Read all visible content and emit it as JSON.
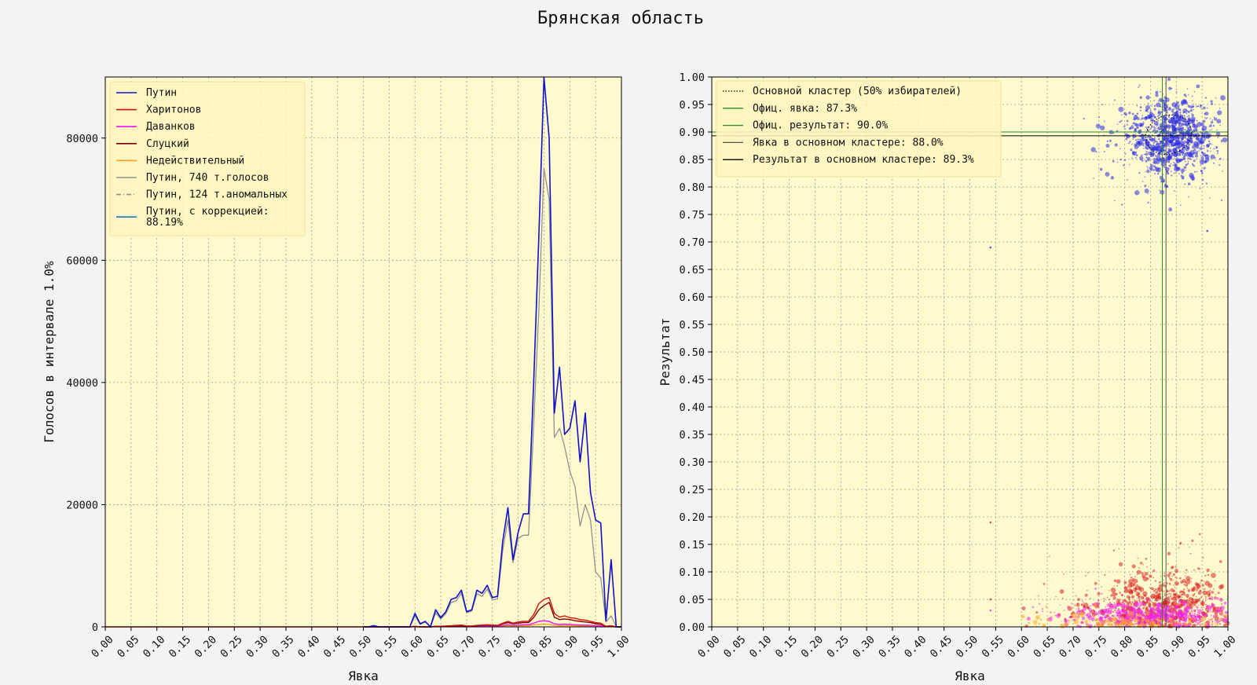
{
  "title": "Брянская область",
  "chart_data": [
    {
      "type": "line",
      "xlabel": "Явка",
      "ylabel": "Голосов в интервале 1.0%",
      "xlim": [
        0,
        1
      ],
      "ylim": [
        0,
        90000
      ],
      "xticks": [
        "0.00",
        "0.05",
        "0.10",
        "0.15",
        "0.20",
        "0.25",
        "0.30",
        "0.35",
        "0.40",
        "0.45",
        "0.50",
        "0.55",
        "0.60",
        "0.65",
        "0.70",
        "0.75",
        "0.80",
        "0.85",
        "0.90",
        "0.95",
        "1.00"
      ],
      "yticks": [
        "0",
        "20000",
        "40000",
        "60000",
        "80000"
      ],
      "ytick_values": [
        0,
        20000,
        40000,
        60000,
        80000
      ],
      "grid": true,
      "legend_position": "upper-left",
      "background": "#fffacd",
      "legend": [
        {
          "label": "Путин",
          "color": "#1010d0",
          "style": "solid"
        },
        {
          "label": "Харитонов",
          "color": "#d01010",
          "style": "solid"
        },
        {
          "label": "Даванков",
          "color": "#ee10ee",
          "style": "solid"
        },
        {
          "label": "Слуцкий",
          "color": "#800000",
          "style": "solid"
        },
        {
          "label": "Недействительный",
          "color": "#ffa020",
          "style": "solid"
        },
        {
          "label": "Путин, 740 т.голосов",
          "color": "#909090",
          "style": "solid"
        },
        {
          "label": "Путин, 124 т.аномальных",
          "color": "#909090",
          "style": "dashdot"
        },
        {
          "label": "Путин, с коррекцией:\n 88.19%",
          "color": "#1f6fd0",
          "style": "solid"
        }
      ],
      "x": [
        0.5,
        0.51,
        0.52,
        0.53,
        0.54,
        0.55,
        0.56,
        0.57,
        0.58,
        0.59,
        0.6,
        0.61,
        0.62,
        0.63,
        0.64,
        0.65,
        0.66,
        0.67,
        0.68,
        0.69,
        0.7,
        0.71,
        0.72,
        0.73,
        0.74,
        0.75,
        0.76,
        0.77,
        0.78,
        0.79,
        0.8,
        0.81,
        0.82,
        0.83,
        0.84,
        0.85,
        0.86,
        0.87,
        0.88,
        0.89,
        0.9,
        0.91,
        0.92,
        0.93,
        0.94,
        0.95,
        0.96,
        0.97,
        0.98,
        0.99,
        1.0
      ],
      "series": [
        {
          "name": "Путин",
          "color": "#1010d0",
          "width": 1.6,
          "dash": "",
          "values": [
            0,
            0,
            200,
            0,
            0,
            0,
            0,
            0,
            0,
            0,
            2200,
            500,
            900,
            0,
            2800,
            1500,
            2500,
            4500,
            4800,
            6000,
            2500,
            2800,
            6000,
            5500,
            6800,
            4800,
            5000,
            14000,
            19500,
            11000,
            15500,
            18500,
            18500,
            40000,
            64000,
            90000,
            80000,
            35000,
            42500,
            31500,
            32500,
            37000,
            27000,
            35000,
            22000,
            17500,
            17000,
            1000,
            11000,
            0,
            0
          ]
        },
        {
          "name": "Путин, 740 т.голосов",
          "color": "#909090",
          "width": 1.3,
          "dash": "",
          "values": [
            0,
            0,
            150,
            0,
            0,
            0,
            0,
            0,
            0,
            0,
            1800,
            400,
            800,
            0,
            2300,
            1300,
            2200,
            4000,
            4300,
            5500,
            2300,
            2600,
            5400,
            5000,
            6200,
            4400,
            4600,
            12500,
            17500,
            10500,
            14500,
            15000,
            15000,
            33000,
            52000,
            75000,
            70000,
            31000,
            32500,
            29500,
            25500,
            23000,
            16500,
            20000,
            17500,
            9000,
            8000,
            800,
            1800,
            0,
            0
          ]
        },
        {
          "name": "Путин, 124 т.аномальных",
          "color": "#909090",
          "width": 1,
          "dash": "6,3,1,3",
          "values": [
            0,
            0,
            0,
            0,
            0,
            0,
            0,
            0,
            0,
            0,
            0,
            0,
            0,
            0,
            0,
            0,
            0,
            0,
            0,
            0,
            0,
            0,
            0,
            0,
            0,
            0,
            0,
            0,
            0,
            0,
            0,
            0,
            0,
            0,
            0,
            0,
            0,
            0,
            0,
            0,
            0,
            0,
            0,
            0,
            0,
            0,
            0,
            0,
            0,
            0,
            0
          ]
        },
        {
          "name": "Харитонов",
          "color": "#d01010",
          "width": 1.4,
          "dash": "",
          "values": [
            0,
            0,
            0,
            0,
            0,
            0,
            0,
            0,
            0,
            0,
            100,
            0,
            0,
            0,
            100,
            100,
            150,
            200,
            250,
            300,
            150,
            150,
            250,
            300,
            350,
            300,
            250,
            600,
            900,
            600,
            800,
            900,
            900,
            2000,
            3800,
            4500,
            4800,
            2200,
            1600,
            1800,
            1500,
            1400,
            1200,
            1100,
            900,
            700,
            600,
            100,
            200,
            0,
            0
          ]
        },
        {
          "name": "Слуцкий",
          "color": "#800000",
          "width": 1.4,
          "dash": "",
          "values": [
            0,
            0,
            0,
            0,
            0,
            0,
            0,
            0,
            0,
            0,
            80,
            0,
            0,
            0,
            80,
            80,
            100,
            150,
            180,
            200,
            100,
            100,
            200,
            250,
            300,
            250,
            200,
            500,
            700,
            500,
            600,
            700,
            700,
            1500,
            2800,
            3500,
            4000,
            1600,
            1200,
            1300,
            1200,
            1000,
            900,
            800,
            700,
            500,
            400,
            80,
            150,
            0,
            0
          ]
        },
        {
          "name": "Даванков",
          "color": "#ee10ee",
          "width": 1.4,
          "dash": "",
          "values": [
            0,
            0,
            0,
            0,
            0,
            0,
            0,
            0,
            0,
            0,
            50,
            0,
            0,
            0,
            50,
            50,
            80,
            100,
            120,
            150,
            80,
            80,
            120,
            150,
            180,
            150,
            150,
            250,
            350,
            250,
            300,
            350,
            350,
            600,
            900,
            1000,
            900,
            500,
            400,
            450,
            400,
            350,
            300,
            280,
            250,
            200,
            150,
            50,
            80,
            0,
            0
          ]
        },
        {
          "name": "Недействительный",
          "color": "#ffa020",
          "width": 1.4,
          "dash": "",
          "values": [
            0,
            0,
            0,
            0,
            0,
            0,
            0,
            0,
            0,
            0,
            30,
            0,
            0,
            0,
            30,
            30,
            50,
            60,
            70,
            80,
            50,
            50,
            80,
            90,
            100,
            80,
            80,
            150,
            200,
            150,
            180,
            200,
            200,
            300,
            400,
            450,
            400,
            250,
            200,
            220,
            200,
            180,
            150,
            140,
            120,
            100,
            80,
            30,
            40,
            0,
            0
          ]
        }
      ]
    },
    {
      "type": "scatter",
      "xlabel": "Явка",
      "ylabel": "Результат",
      "xlim": [
        0,
        1
      ],
      "ylim": [
        0,
        1
      ],
      "xticks": [
        "0.00",
        "0.05",
        "0.10",
        "0.15",
        "0.20",
        "0.25",
        "0.30",
        "0.35",
        "0.40",
        "0.45",
        "0.50",
        "0.55",
        "0.60",
        "0.65",
        "0.70",
        "0.75",
        "0.80",
        "0.85",
        "0.90",
        "0.95",
        "1.00"
      ],
      "yticks": [
        "0.00",
        "0.05",
        "0.10",
        "0.15",
        "0.20",
        "0.25",
        "0.30",
        "0.35",
        "0.40",
        "0.45",
        "0.50",
        "0.55",
        "0.60",
        "0.65",
        "0.70",
        "0.75",
        "0.80",
        "0.85",
        "0.90",
        "0.95",
        "1.00"
      ],
      "grid": true,
      "legend_position": "upper-left",
      "background": "#fffacd",
      "legend": [
        {
          "label": "Основной кластер (50% избирателей)",
          "color": "#000000",
          "style": "dotted"
        },
        {
          "label": "Офиц. явка: 87.3%",
          "color": "#2a8a2a",
          "style": "solid"
        },
        {
          "label": "Офиц. результат: 90.0%",
          "color": "#2a8a2a",
          "style": "solid"
        },
        {
          "label": "Явка в основном кластере: 88.0%",
          "color": "#555555",
          "style": "solid"
        },
        {
          "label": "Результат в основном кластере: 89.3%",
          "color": "#000000",
          "style": "solid"
        }
      ],
      "official_turnout": 0.873,
      "official_result": 0.9,
      "cluster_turnout": 0.88,
      "cluster_result": 0.893,
      "clusters": [
        {
          "name": "Путин",
          "color": "#2a2ae8",
          "cx": 0.89,
          "cy": 0.89,
          "sx": 0.04,
          "sy": 0.035,
          "count": 1100,
          "xmin": 0.58,
          "xmax": 1.0,
          "ymin": 0.7,
          "ymax": 1.0
        },
        {
          "name": "Харитонов",
          "color": "#d82020",
          "cx": 0.87,
          "cy": 0.04,
          "sx": 0.06,
          "sy": 0.03,
          "count": 900,
          "xmin": 0.6,
          "xmax": 1.0,
          "ymin": 0.0,
          "ymax": 0.2
        },
        {
          "name": "Даванков",
          "color": "#ee20ee",
          "cx": 0.86,
          "cy": 0.02,
          "sx": 0.08,
          "sy": 0.012,
          "count": 700,
          "xmin": 0.6,
          "xmax": 1.0,
          "ymin": 0.0,
          "ymax": 0.07
        },
        {
          "name": "Недействительный",
          "color": "#ffa020",
          "cx": 0.8,
          "cy": 0.01,
          "sx": 0.1,
          "sy": 0.008,
          "count": 250,
          "xmin": 0.6,
          "xmax": 1.0,
          "ymin": 0.0,
          "ymax": 0.05
        }
      ],
      "outliers": [
        {
          "x": 0.54,
          "y": 0.69,
          "color": "#2a2ae8"
        },
        {
          "x": 0.54,
          "y": 0.19,
          "color": "#d82020"
        },
        {
          "x": 0.54,
          "y": 0.05,
          "color": "#d82020"
        },
        {
          "x": 0.54,
          "y": 0.03,
          "color": "#ee20ee"
        },
        {
          "x": 0.96,
          "y": 0.72,
          "color": "#2a2ae8"
        }
      ]
    }
  ]
}
